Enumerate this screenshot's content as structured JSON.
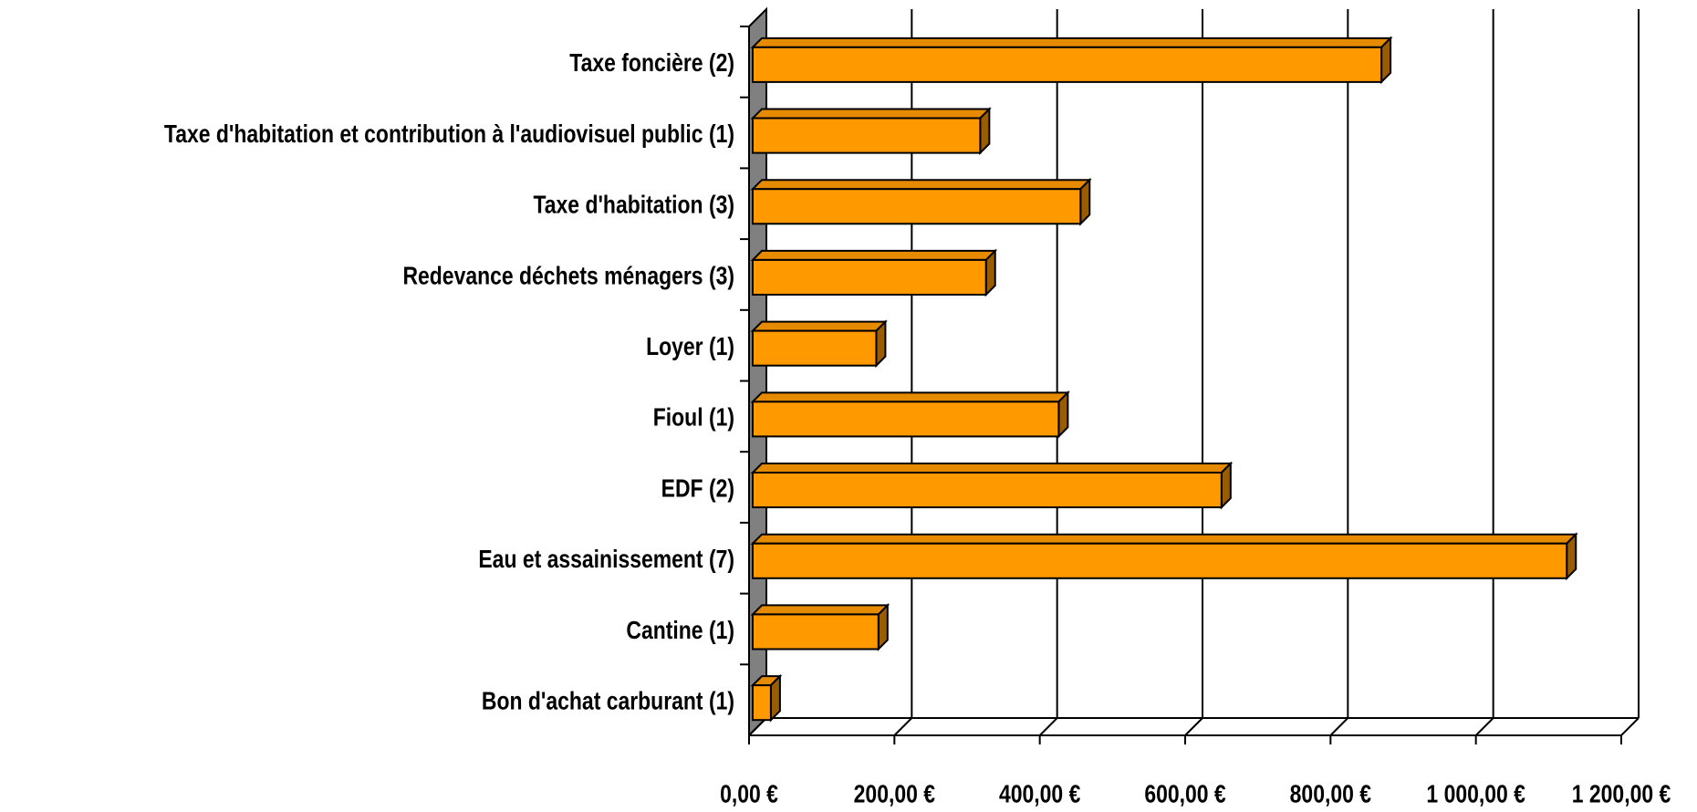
{
  "chart_data": {
    "type": "bar",
    "orientation": "horizontal",
    "three_d": true,
    "categories": [
      "Taxe foncière (2)",
      "Taxe d'habitation et contribution à l'audiovisuel public (1)",
      "Taxe d'habitation (3)",
      "Redevance déchets ménagers (3)",
      "Loyer (1)",
      "Fioul (1)",
      "EDF (2)",
      "Eau et assainissement (7)",
      "Cantine (1)",
      "Bon d'achat carburant (1)"
    ],
    "values": [
      870,
      318,
      456,
      326,
      175,
      426,
      650,
      1125,
      178,
      30
    ],
    "color": "#ff9900",
    "xlim": [
      0,
      1200
    ],
    "xticks": [
      {
        "value": 0,
        "label": "0,00 €"
      },
      {
        "value": 200,
        "label": "200,00 €"
      },
      {
        "value": 400,
        "label": "400,00 €"
      },
      {
        "value": 600,
        "label": "600,00 €"
      },
      {
        "value": 800,
        "label": "800,00 €"
      },
      {
        "value": 1000,
        "label": "1 000,00 €"
      },
      {
        "value": 1200,
        "label": "1 200,00 €"
      }
    ],
    "grid": true
  }
}
